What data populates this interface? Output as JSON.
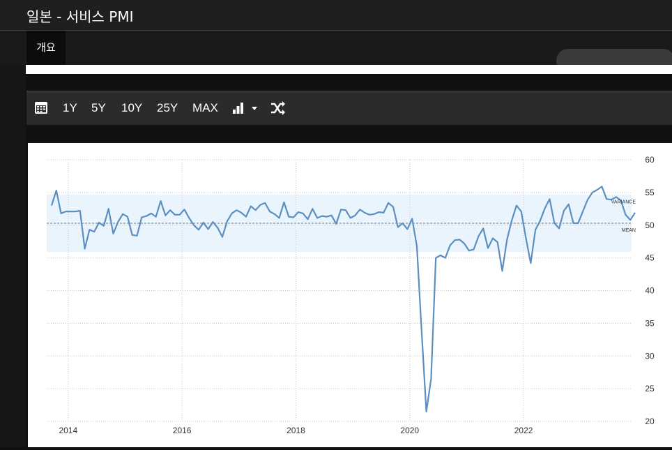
{
  "header": {
    "title": "일본 - 서비스 PMI"
  },
  "tabs": [
    {
      "label": "개요"
    }
  ],
  "toolbar": {
    "items": [
      "1Y",
      "5Y",
      "10Y",
      "25Y",
      "MAX"
    ],
    "icons": [
      "calendar-icon",
      "bar-chart-icon",
      "caret-down-icon",
      "shuffle-icon"
    ]
  },
  "colors": {
    "line": "#5b8fc0",
    "band": "#eaf4fd",
    "background": "#ffffff",
    "dark": "#1f1f1f"
  },
  "chart_data": {
    "type": "line",
    "title": "",
    "xlabel": "",
    "ylabel": "",
    "ylim": [
      20,
      60
    ],
    "yticks": [
      20,
      25,
      30,
      35,
      40,
      45,
      50,
      55,
      60
    ],
    "xticks": [
      2014,
      2016,
      2018,
      2020,
      2022
    ],
    "mean": 50.3,
    "band": [
      45.9,
      54.7
    ],
    "annotations": {
      "variance": "VARIANCE",
      "mean": "MEAN"
    },
    "grid": true,
    "legend": "none",
    "series": [
      {
        "start": "2013-09",
        "frequency": "monthly",
        "values": [
          53.0,
          55.3,
          51.8,
          52.1,
          52.1,
          52.1,
          52.2,
          46.4,
          49.3,
          49.0,
          50.4,
          49.9,
          52.5,
          48.7,
          50.5,
          51.7,
          51.3,
          48.5,
          48.4,
          51.2,
          51.4,
          51.8,
          51.3,
          53.7,
          51.5,
          52.3,
          51.6,
          51.6,
          52.4,
          51.1,
          50.0,
          49.3,
          50.4,
          49.4,
          50.5,
          49.6,
          48.2,
          50.6,
          51.8,
          52.3,
          51.9,
          51.3,
          52.9,
          52.3,
          53.1,
          53.4,
          52.1,
          51.7,
          51.1,
          53.5,
          51.3,
          51.2,
          52.0,
          51.8,
          50.9,
          52.5,
          51.1,
          51.4,
          51.3,
          51.5,
          50.2,
          52.4,
          52.3,
          51.1,
          51.5,
          52.4,
          51.9,
          51.6,
          51.7,
          52.0,
          51.9,
          53.4,
          52.8,
          49.7,
          50.3,
          49.4,
          51.0,
          46.8,
          33.8,
          21.5,
          26.5,
          45.0,
          45.4,
          45.0,
          46.9,
          47.7,
          47.8,
          47.2,
          46.1,
          46.3,
          48.3,
          49.5,
          46.5,
          48.0,
          47.4,
          43.0,
          47.8,
          50.7,
          53.0,
          52.1,
          48.0,
          44.2,
          49.3,
          50.7,
          52.6,
          54.0,
          50.3,
          49.5,
          52.2,
          53.2,
          50.3,
          50.3,
          52.1,
          53.9,
          55.0,
          55.4,
          55.9,
          54.0,
          53.9,
          54.3,
          53.8,
          51.6,
          50.8,
          51.9
        ]
      }
    ]
  }
}
